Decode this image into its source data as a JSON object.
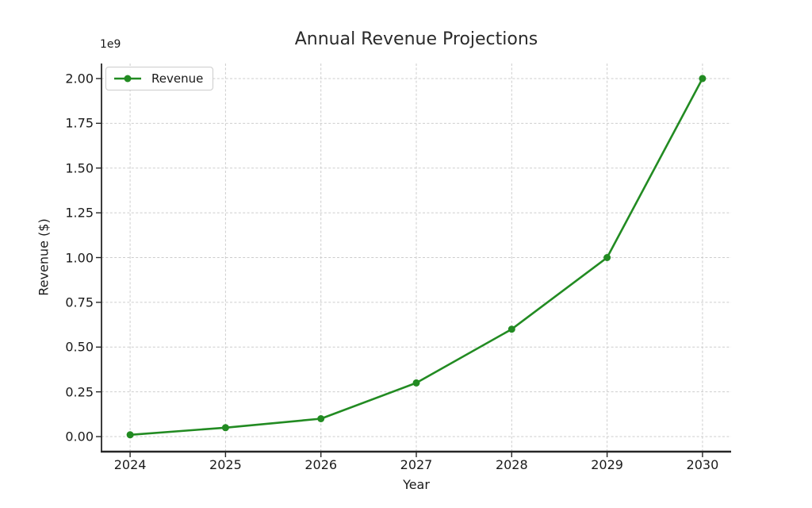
{
  "chart_data": {
    "type": "line",
    "title": "Annual Revenue Projections",
    "xlabel": "Year",
    "ylabel": "Revenue ($)",
    "y_offset_label": "1e9",
    "x": [
      2024,
      2025,
      2026,
      2027,
      2028,
      2029,
      2030
    ],
    "xtick_labels": [
      "2024",
      "2025",
      "2026",
      "2027",
      "2028",
      "2029",
      "2030"
    ],
    "series": [
      {
        "name": "Revenue",
        "values": [
          10000000,
          50000000,
          100000000,
          300000000,
          600000000,
          1000000000,
          2000000000
        ]
      }
    ],
    "yticks": [
      0,
      250000000,
      500000000,
      750000000,
      1000000000,
      1250000000,
      1500000000,
      1750000000,
      2000000000
    ],
    "ytick_labels": [
      "0.00",
      "0.25",
      "0.50",
      "0.75",
      "1.00",
      "1.25",
      "1.50",
      "1.75",
      "2.00"
    ],
    "xlim": [
      2023.7,
      2030.3
    ],
    "ylim": [
      -84000000,
      2084000000
    ],
    "grid": true,
    "grid_style": "dashed",
    "legend_position": "upper left",
    "marker": "o",
    "colors": {
      "line": "#228B22",
      "grid": "#cdcdcd",
      "spine": "#262626",
      "tick": "#262626",
      "text": "#1a1a1a",
      "legend_border": "#cccccc",
      "background": "#ffffff"
    }
  }
}
